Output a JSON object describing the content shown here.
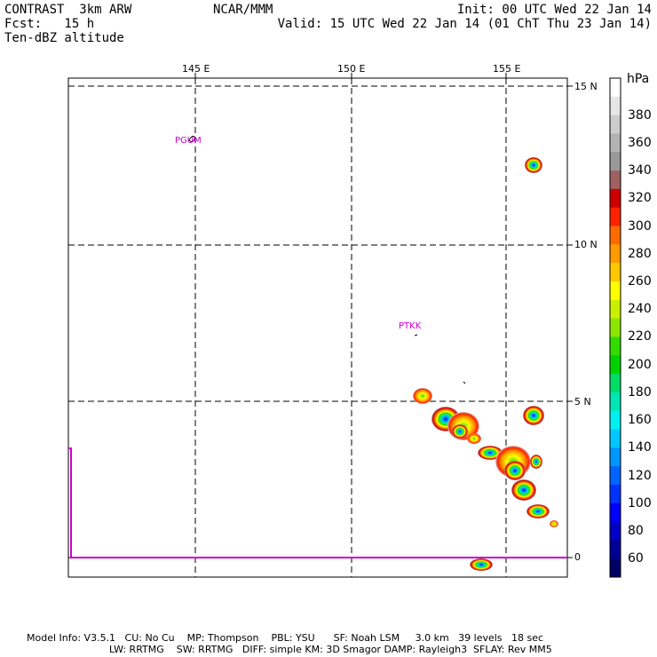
{
  "header": {
    "line1_left": "CONTRAST  3km ARW",
    "line1_center": "NCAR/MMM",
    "line1_right": "Init: 00 UTC Wed 22 Jan 14",
    "line2_left": "Fcst:   15 h",
    "line2_right": "Valid: 15 UTC Wed 22 Jan 14 (01 ChT Thu 23 Jan 14)",
    "line3_left": "Ten-dBZ altitude"
  },
  "map": {
    "lon_ticks": [
      "145 E",
      "150 E",
      "155 E"
    ],
    "lat_ticks": [
      "15 N",
      "10 N",
      "5 N",
      "0"
    ],
    "stations": [
      {
        "name": "PGUM",
        "lon": 144.8,
        "lat": 13.5
      },
      {
        "name": "PTKK",
        "lon": 151.8,
        "lat": 7.5
      }
    ],
    "colors": {
      "station": "#cc00cc",
      "grid": "#000000"
    }
  },
  "colorbar": {
    "unit": "hPa",
    "labels": [
      "380",
      "360",
      "340",
      "320",
      "300",
      "280",
      "260",
      "240",
      "220",
      "200",
      "180",
      "160",
      "140",
      "120",
      "100",
      "80",
      "60"
    ],
    "colors": [
      "#ffffff",
      "#e6e6e6",
      "#cccccc",
      "#b3b3b3",
      "#999999",
      "#a06060",
      "#cc0000",
      "#ff2000",
      "#ff6a00",
      "#ff9a00",
      "#ffc800",
      "#ffff00",
      "#c8f000",
      "#8ce600",
      "#32dc00",
      "#00d200",
      "#00dc64",
      "#00e6b4",
      "#00f0f0",
      "#00c8ff",
      "#0096ff",
      "#0064ff",
      "#0032ff",
      "#0000ff",
      "#0000c8",
      "#000096",
      "#000064"
    ]
  },
  "footer": {
    "line1": "Model Info: V3.5.1   CU: No Cu    MP: Thompson    PBL: YSU      SF: Noah LSM     3.0 km   39 levels   18 sec",
    "line2": "LW: RRTMG    SW: RRTMG   DIFF: simple KM: 3D Smagor DAMP: Rayleigh3  SFLAY: Rev MM5"
  }
}
